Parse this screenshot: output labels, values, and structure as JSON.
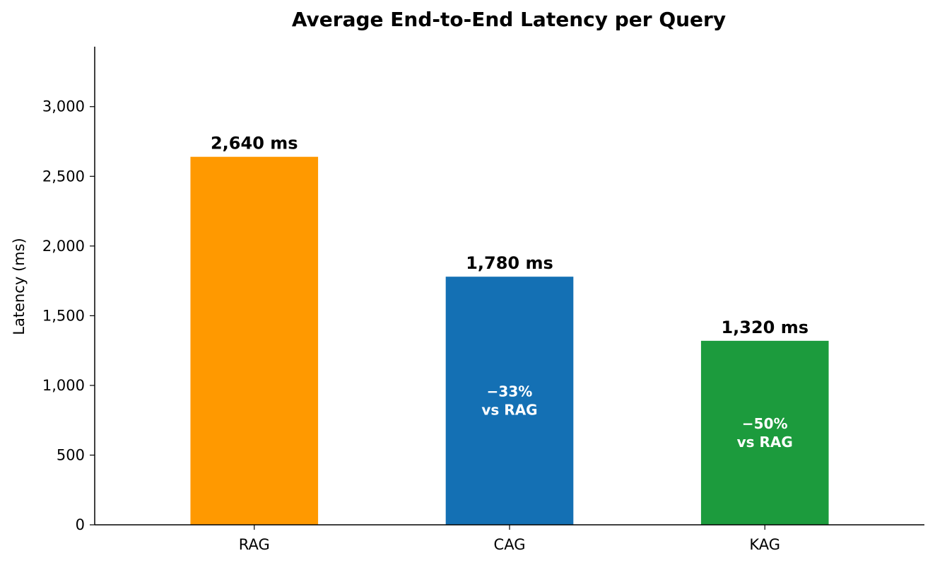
{
  "chart_data": {
    "type": "bar",
    "title": "Average End-to-End Latency per Query",
    "xlabel": "",
    "ylabel": "Latency (ms)",
    "ylim": [
      0,
      3430
    ],
    "yticks": [
      0,
      500,
      1000,
      1500,
      2000,
      2500,
      3000
    ],
    "ytick_labels": [
      "0",
      "500",
      "1,000",
      "1,500",
      "2,000",
      "2,500",
      "3,000"
    ],
    "categories": [
      "RAG",
      "CAG",
      "KAG"
    ],
    "values": [
      2640,
      1780,
      1320
    ],
    "value_labels": [
      "2,640 ms",
      "1,780 ms",
      "1,320 ms"
    ],
    "colors": [
      "#ff9900",
      "#1470b4",
      "#1c9b3d"
    ],
    "annotations": [
      null,
      {
        "line1": "−33%",
        "line2": "vs RAG"
      },
      {
        "line1": "−50%",
        "line2": "vs RAG"
      }
    ],
    "grid": false,
    "legend": "none"
  }
}
